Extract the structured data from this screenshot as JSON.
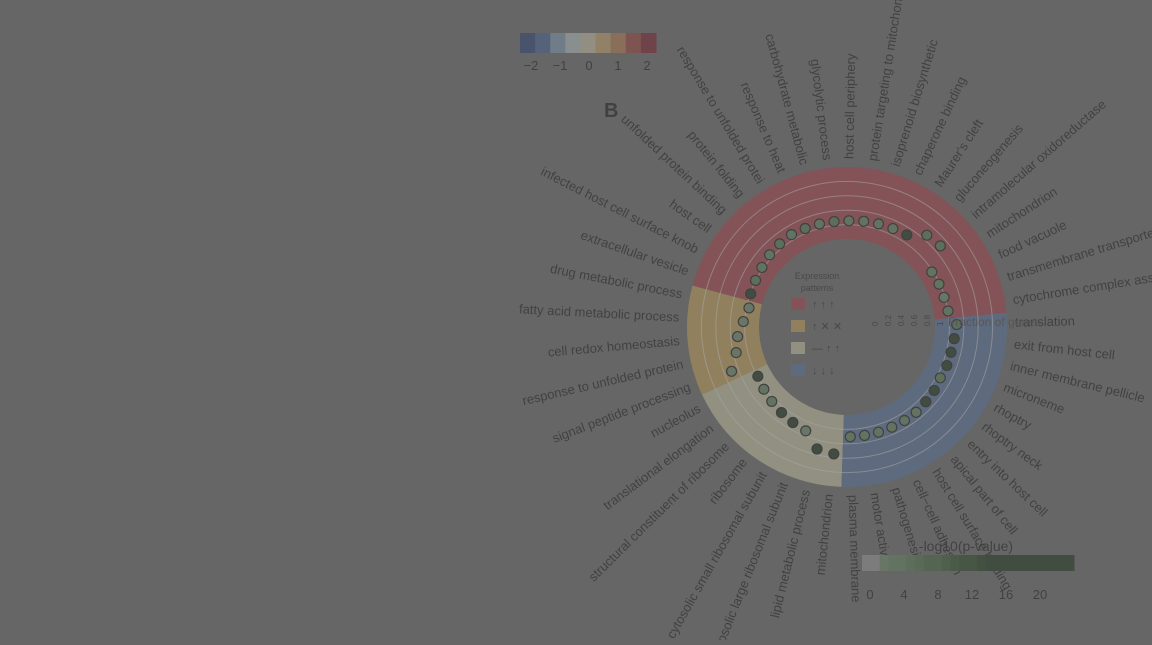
{
  "figure": {
    "panel_label": "B",
    "colorbar_ticks": [
      "−2",
      "−1",
      "0",
      "1",
      "2"
    ],
    "colorbar_colors": [
      "#243a72",
      "#3d5f93",
      "#7f9ab8",
      "#b8c3c6",
      "#ccc6a8",
      "#c9a46a",
      "#b77a4a",
      "#9c3e35",
      "#7a1525"
    ],
    "pvalue_title": "-log10(p-value)",
    "pvalue_ticks": [
      "0",
      "4",
      "8",
      "12",
      "16",
      "20"
    ],
    "pvalue_colors": [
      "#9a9a9a",
      "#6d8c6a",
      "#5f845b",
      "#537a4d",
      "#487141",
      "#3c6536",
      "#315a2c",
      "#274e23",
      "#1e421b",
      "#173715",
      "#122c10"
    ],
    "legend_title": [
      "Expression",
      "patterns"
    ],
    "fraction_label": "Fraction of genes",
    "radial_ticks": [
      "0",
      "0.2",
      "0.4",
      "0.6",
      "0.8",
      "1"
    ],
    "overlay_color": "#666666"
  },
  "chart_data": {
    "type": "circular-dot",
    "colorbar_range": [
      -2,
      2
    ],
    "radial_axis": {
      "label": "Fraction of genes",
      "range": [
        0,
        1
      ]
    },
    "color_axis": {
      "label": "-log10(p-value)",
      "range": [
        0,
        24
      ]
    },
    "groups": [
      {
        "pattern": "↑ ↑ ↑",
        "color": "#a93b44",
        "terms": [
          {
            "term": "extracellular vesicle",
            "fraction": 0.35,
            "p": 24
          },
          {
            "term": "infected host cell surface knob",
            "fraction": 0.37,
            "p": 6
          },
          {
            "term": "host cell",
            "fraction": 0.4,
            "p": 4
          },
          {
            "term": "unfolded protein binding",
            "fraction": 0.45,
            "p": 5
          },
          {
            "term": "protein folding",
            "fraction": 0.48,
            "p": 6
          },
          {
            "term": "response to unfolded protei",
            "fraction": 0.5,
            "p": 4
          },
          {
            "term": "response to heat",
            "fraction": 0.48,
            "p": 7
          },
          {
            "term": "carbohydrate metabolic",
            "fraction": 0.47,
            "p": 5
          },
          {
            "term": "glycolytic process",
            "fraction": 0.46,
            "p": 6
          },
          {
            "term": "host cell periphery",
            "fraction": 0.46,
            "p": 5
          },
          {
            "term": "protein targeting to mitochondrion",
            "fraction": 0.48,
            "p": 4
          },
          {
            "term": "isoprenoid biosynthetic",
            "fraction": 0.5,
            "p": 5
          },
          {
            "term": "chaperone binding",
            "fraction": 0.52,
            "p": 4
          },
          {
            "term": "Maurer's cleft",
            "fraction": 0.55,
            "p": 24
          },
          {
            "term": "gluconeogenesis",
            "fraction": 0.85,
            "p": 7
          },
          {
            "term": "intramolecular oxidoreductase",
            "fraction": 0.9,
            "p": 8
          },
          {
            "term": "mitochondrion",
            "fraction": 0.33,
            "p": 5
          },
          {
            "term": "food vacuole",
            "fraction": 0.34,
            "p": 4
          },
          {
            "term": "transmembrane transporter",
            "fraction": 0.34,
            "p": 3
          },
          {
            "term": "cytochrome complex assembly",
            "fraction": 0.36,
            "p": 4
          }
        ]
      },
      {
        "pattern": "↑ ✕ ✕",
        "color": "#c9a253",
        "terms": [
          {
            "term": "signal peptide processing",
            "fraction": 0.9,
            "p": 2
          },
          {
            "term": "response to unfolded protein",
            "fraction": 0.65,
            "p": 3
          },
          {
            "term": "cell redox homeostasis",
            "fraction": 0.55,
            "p": 3
          },
          {
            "term": "fatty acid metabolic process",
            "fraction": 0.4,
            "p": 3
          },
          {
            "term": "drug metabolic process",
            "fraction": 0.3,
            "p": 3
          }
        ]
      },
      {
        "pattern": "— ↑ ↑",
        "color": "#c9c7a5",
        "terms": [
          {
            "term": "mitochondrion",
            "fraction": 1.0,
            "p": 24
          },
          {
            "term": "lipid metabolic process",
            "fraction": 0.95,
            "p": 24
          },
          {
            "term": "cytosolic large ribosomal subunit",
            "fraction": 0.6,
            "p": 3
          },
          {
            "term": "cytosolic small ribosomal subunit",
            "fraction": 0.55,
            "p": 24
          },
          {
            "term": "ribosome",
            "fraction": 0.5,
            "p": 24
          },
          {
            "term": "structural constituent of ribosome",
            "fraction": 0.45,
            "p": 4
          },
          {
            "term": "translational elongation",
            "fraction": 0.4,
            "p": 4
          },
          {
            "term": "nucleolus",
            "fraction": 0.35,
            "p": 24
          }
        ]
      },
      {
        "pattern": "↓ ↓ ↓",
        "color": "#55709b",
        "terms": [
          {
            "term": "translation",
            "fraction": 0.55,
            "p": 6
          },
          {
            "term": "exit from host cell",
            "fraction": 0.5,
            "p": 24
          },
          {
            "term": "inner membrane pellicle",
            "fraction": 0.48,
            "p": 24
          },
          {
            "term": "microneme",
            "fraction": 0.48,
            "p": 24
          },
          {
            "term": "rhoptry",
            "fraction": 0.46,
            "p": 6
          },
          {
            "term": "rhoptry neck",
            "fraction": 0.5,
            "p": 24
          },
          {
            "term": "entry into host cell",
            "fraction": 0.52,
            "p": 24
          },
          {
            "term": "apical part of cell",
            "fraction": 0.55,
            "p": 5
          },
          {
            "term": "host cell surface binding",
            "fraction": 0.55,
            "p": 5
          },
          {
            "term": "cell−cell adhesion",
            "fraction": 0.55,
            "p": 4
          },
          {
            "term": "pathogenesis",
            "fraction": 0.55,
            "p": 5
          },
          {
            "term": "motor activity",
            "fraction": 0.55,
            "p": 4
          },
          {
            "term": "plasma membrane",
            "fraction": 0.55,
            "p": 4
          }
        ]
      }
    ]
  }
}
